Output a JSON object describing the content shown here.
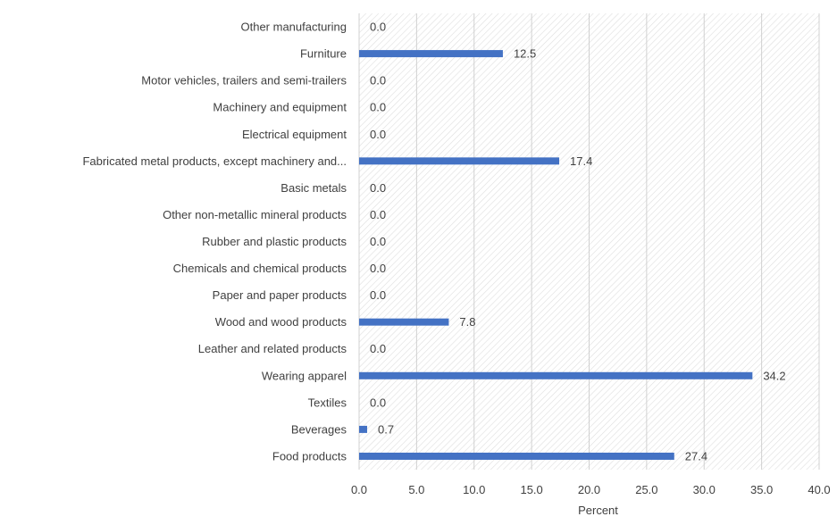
{
  "colors": {
    "bar": "#4472c4",
    "grid": "#d0d0d0",
    "hatch": "#dedede",
    "text": "#404040"
  },
  "chart_data": {
    "type": "bar",
    "orientation": "horizontal",
    "categories": [
      "Other manufacturing",
      "Furniture",
      "Motor vehicles, trailers and semi-trailers",
      "Machinery and equipment",
      "Electrical equipment",
      "Fabricated metal products, except machinery and...",
      "Basic metals",
      "Other non-metallic mineral products",
      "Rubber and plastic products",
      "Chemicals and chemical products",
      "Paper and paper products",
      "Wood and wood products",
      "Leather and related products",
      "Wearing apparel",
      "Textiles",
      "Beverages",
      "Food products"
    ],
    "values": [
      0.0,
      12.5,
      0.0,
      0.0,
      0.0,
      17.4,
      0.0,
      0.0,
      0.0,
      0.0,
      0.0,
      7.8,
      0.0,
      34.2,
      0.0,
      0.7,
      27.4
    ],
    "value_labels": [
      "0.0",
      "12.5",
      "0.0",
      "0.0",
      "0.0",
      "17.4",
      "0.0",
      "0.0",
      "0.0",
      "0.0",
      "0.0",
      "7.8",
      "0.0",
      "34.2",
      "0.0",
      "0.7",
      "27.4"
    ],
    "x_ticks": [
      "0.0",
      "5.0",
      "10.0",
      "15.0",
      "20.0",
      "25.0",
      "30.0",
      "35.0",
      "40.0"
    ],
    "xlim": [
      0,
      40
    ],
    "xlabel": "Percent",
    "title": "",
    "grid": true,
    "legend": "none"
  }
}
